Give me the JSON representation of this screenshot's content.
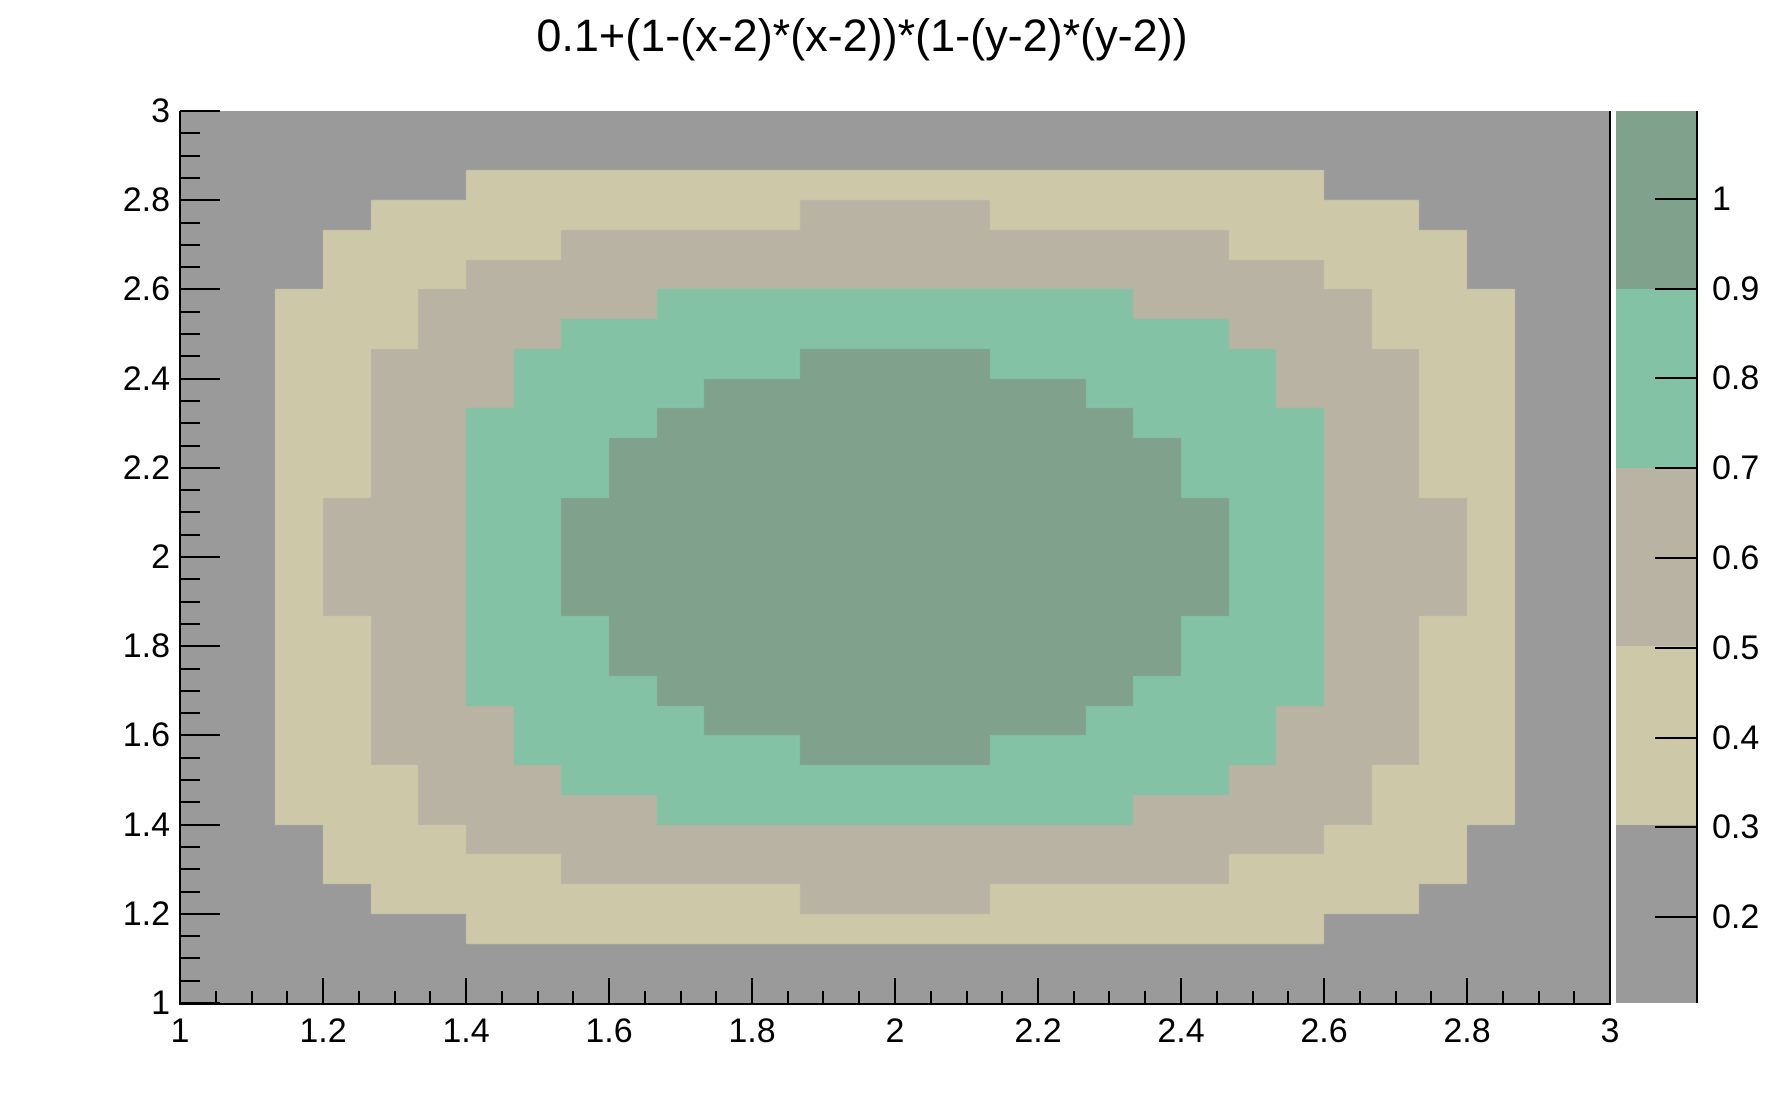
{
  "chart_data": {
    "type": "heatmap",
    "title": "0.1+(1-(x-2)*(x-2))*(1-(y-2)*(y-2))",
    "surface": {
      "offset": 0.1,
      "x_center": 2,
      "y_center": 2
    },
    "x_range": [
      1,
      3
    ],
    "y_range": [
      1,
      3
    ],
    "grid_bins_x": 30,
    "grid_bins_y": 30,
    "z_min": 0.1043,
    "z_max": 1.0978,
    "num_contour_bands": 5,
    "contour_bands": [
      {
        "from": 0.1043,
        "to": 0.303,
        "color": "#9a9a9a",
        "name": "gray"
      },
      {
        "from": 0.303,
        "to": 0.5017,
        "color": "#cdc9a8",
        "name": "khaki"
      },
      {
        "from": 0.5017,
        "to": 0.7004,
        "color": "#b9b3a3",
        "name": "tan"
      },
      {
        "from": 0.7004,
        "to": 0.8991,
        "color": "#84c2a5",
        "name": "teal"
      },
      {
        "from": 0.8991,
        "to": 1.0978,
        "color": "#80a18c",
        "name": "sage"
      }
    ],
    "x_ticks": [
      {
        "value": 1,
        "label": "1"
      },
      {
        "value": 1.2,
        "label": "1.2"
      },
      {
        "value": 1.4,
        "label": "1.4"
      },
      {
        "value": 1.6,
        "label": "1.6"
      },
      {
        "value": 1.8,
        "label": "1.8"
      },
      {
        "value": 2,
        "label": "2"
      },
      {
        "value": 2.2,
        "label": "2.2"
      },
      {
        "value": 2.4,
        "label": "2.4"
      },
      {
        "value": 2.6,
        "label": "2.6"
      },
      {
        "value": 2.8,
        "label": "2.8"
      },
      {
        "value": 3,
        "label": "3"
      }
    ],
    "y_ticks": [
      {
        "value": 1,
        "label": "1"
      },
      {
        "value": 1.2,
        "label": "1.2"
      },
      {
        "value": 1.4,
        "label": "1.4"
      },
      {
        "value": 1.6,
        "label": "1.6"
      },
      {
        "value": 1.8,
        "label": "1.8"
      },
      {
        "value": 2,
        "label": "2"
      },
      {
        "value": 2.2,
        "label": "2.2"
      },
      {
        "value": 2.4,
        "label": "2.4"
      },
      {
        "value": 2.6,
        "label": "2.6"
      },
      {
        "value": 2.8,
        "label": "2.8"
      },
      {
        "value": 3,
        "label": "3"
      }
    ],
    "minor_tick_step": 0.05,
    "palette_ticks": [
      {
        "value": 1,
        "label": "1"
      },
      {
        "value": 0.9,
        "label": "0.9"
      },
      {
        "value": 0.8,
        "label": "0.8"
      },
      {
        "value": 0.7,
        "label": "0.7"
      },
      {
        "value": 0.6,
        "label": "0.6"
      },
      {
        "value": 0.5,
        "label": "0.5"
      },
      {
        "value": 0.4,
        "label": "0.4"
      },
      {
        "value": 0.3,
        "label": "0.3"
      },
      {
        "value": 0.2,
        "label": "0.2"
      }
    ],
    "axis_color": "#000000",
    "background_color": "#ffffff",
    "legend_position": "right",
    "grid": "off"
  }
}
